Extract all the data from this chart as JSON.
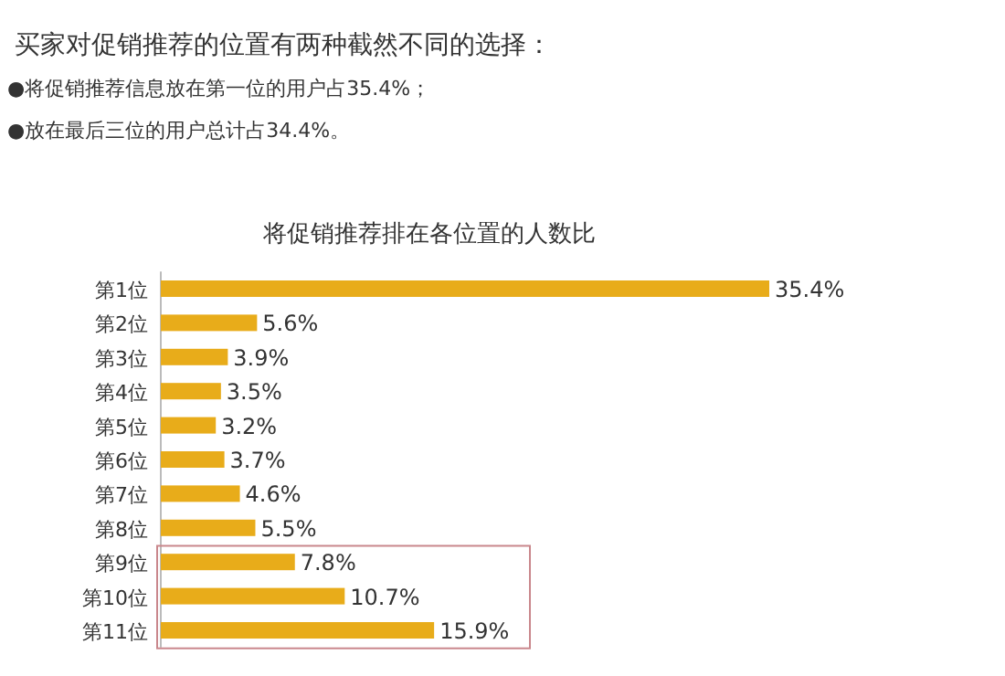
{
  "chart_data": {
    "type": "bar",
    "orientation": "horizontal",
    "title": "将促销推荐排在各位置的人数比",
    "annotations": [
      "买家对促销推荐的位置有两种截然不同的选择：",
      "●将促销推荐信息放在第一位的用户占35.4%；",
      "●放在最后三位的用户总计占34.4%。"
    ],
    "categories": [
      "第1位",
      "第2位",
      "第3位",
      "第4位",
      "第5位",
      "第6位",
      "第7位",
      "第8位",
      "第9位",
      "第10位",
      "第11位"
    ],
    "values": [
      35.4,
      5.6,
      3.9,
      3.5,
      3.2,
      3.7,
      4.6,
      5.5,
      7.8,
      10.7,
      15.9
    ],
    "value_labels": [
      "35.4%",
      "5.6%",
      "3.9%",
      "3.5%",
      "3.2%",
      "3.7%",
      "4.6%",
      "5.5%",
      "7.8%",
      "10.7%",
      "15.9%"
    ],
    "color": "#e8ac1a"
  }
}
